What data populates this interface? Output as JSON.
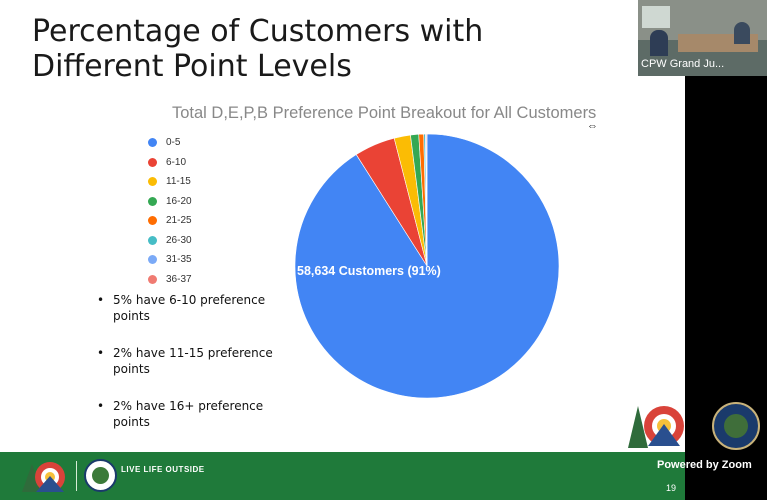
{
  "slide": {
    "title": "Percentage of Customers with Different Point Levels",
    "page_number": "19",
    "bullets": [
      "5% have 6-10 preference points",
      "2% have 11-15 preference points",
      "2% have 16+ preference points"
    ],
    "footer_text": "LIVE LIFE OUTSIDE"
  },
  "chart_data": {
    "type": "pie",
    "title": "Total D,E,P,B Preference Point Breakout for All Customers",
    "slice_label": "58,634 Customers (91%)",
    "legend_position": "left",
    "categories": [
      "0-5",
      "6-10",
      "11-15",
      "16-20",
      "21-25",
      "26-30",
      "31-35",
      "36-37"
    ],
    "values": [
      91,
      5,
      2,
      1,
      0.6,
      0.2,
      0.1,
      0.1
    ],
    "colors": [
      "#4285f4",
      "#ea4335",
      "#fbbc04",
      "#34a853",
      "#ff6d01",
      "#46bdc6",
      "#7baaf7",
      "#f07b72"
    ]
  },
  "zoom": {
    "participant_name": "CPW Grand Ju...",
    "powered_by": "Powered by Zoom"
  },
  "icons": [
    "colorado-logo-icon",
    "cpw-seal-icon",
    "resize-cursor-icon",
    "tree-mountain-icon"
  ]
}
